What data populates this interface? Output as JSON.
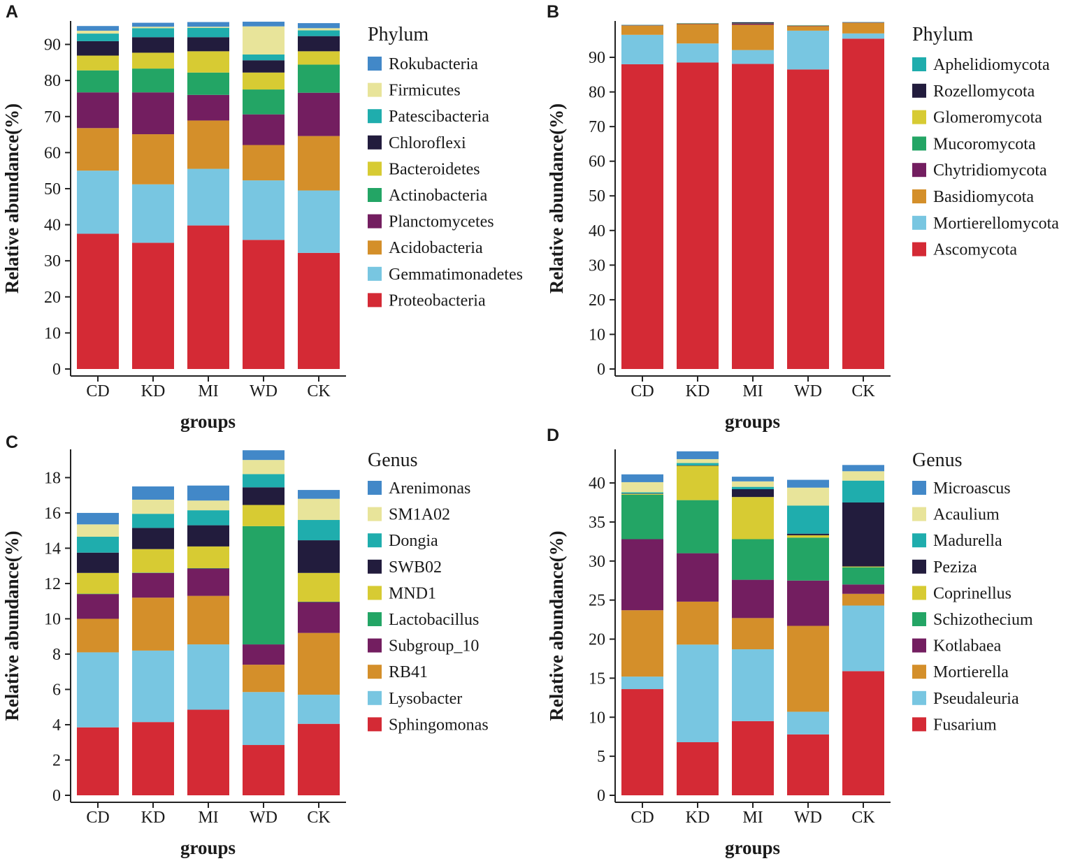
{
  "chart_data": [
    {
      "panel": "A",
      "type": "bar",
      "stacked": true,
      "categories": [
        "CD",
        "KD",
        "MI",
        "WD",
        "CK"
      ],
      "xlabel": "groups",
      "ylabel": "Relative abundance(%)",
      "ylim": [
        0,
        96.5
      ],
      "yticks": [
        0,
        10,
        20,
        30,
        40,
        50,
        60,
        70,
        80,
        90
      ],
      "legend_title": "Phylum",
      "series": [
        {
          "name": "Proteobacteria",
          "color": "#d42a35",
          "values": [
            37.5,
            35.0,
            39.8,
            35.8,
            32.2
          ]
        },
        {
          "name": "Gemmatimonadetes",
          "color": "#78c6e1",
          "values": [
            17.5,
            16.2,
            15.7,
            16.5,
            17.3
          ]
        },
        {
          "name": "Acidobacteria",
          "color": "#d48f2a",
          "values": [
            11.8,
            13.9,
            13.4,
            9.8,
            15.1
          ]
        },
        {
          "name": "Planctomycetes",
          "color": "#731e60",
          "values": [
            9.9,
            11.6,
            7.1,
            8.5,
            12.0
          ]
        },
        {
          "name": "Actinobacteria",
          "color": "#23a565",
          "values": [
            6.1,
            6.6,
            6.2,
            6.9,
            7.8
          ]
        },
        {
          "name": "Bacteroidetes",
          "color": "#d7cb33",
          "values": [
            4.1,
            4.4,
            5.9,
            4.7,
            3.7
          ]
        },
        {
          "name": "Chloroflexi",
          "color": "#221c3d",
          "values": [
            4.0,
            4.3,
            3.9,
            3.4,
            4.2
          ]
        },
        {
          "name": "Patescibacteria",
          "color": "#1fadad",
          "values": [
            2.1,
            2.5,
            2.6,
            1.6,
            1.6
          ]
        },
        {
          "name": "Firmicutes",
          "color": "#e8e49a",
          "values": [
            0.8,
            0.4,
            0.3,
            7.8,
            0.6
          ]
        },
        {
          "name": "Rokubacteria",
          "color": "#4288c8",
          "values": [
            1.3,
            1.1,
            1.3,
            1.3,
            1.4
          ]
        }
      ]
    },
    {
      "panel": "B",
      "type": "bar",
      "stacked": true,
      "categories": [
        "CD",
        "KD",
        "MI",
        "WD",
        "CK"
      ],
      "xlabel": "groups",
      "ylabel": "Relative abundance(%)",
      "ylim": [
        0,
        100.5
      ],
      "yticks": [
        0,
        10,
        20,
        30,
        40,
        50,
        60,
        70,
        80,
        90
      ],
      "legend_title": "Phylum",
      "series": [
        {
          "name": "Ascomycota",
          "color": "#d42a35",
          "values": [
            88.0,
            88.5,
            88.1,
            86.5,
            95.4
          ]
        },
        {
          "name": "Mortierellomycota",
          "color": "#78c6e1",
          "values": [
            8.5,
            5.5,
            4.0,
            11.2,
            1.5
          ]
        },
        {
          "name": "Basidiomycota",
          "color": "#d48f2a",
          "values": [
            2.6,
            5.6,
            7.3,
            1.3,
            3.0
          ]
        },
        {
          "name": "Chytridiomycota",
          "color": "#731e60",
          "values": [
            0.1,
            0.1,
            0.3,
            0.1,
            0.1
          ]
        },
        {
          "name": "Mucoromycota",
          "color": "#23a565",
          "values": [
            0.05,
            0.05,
            0.05,
            0.05,
            0.05
          ]
        },
        {
          "name": "Glomeromycota",
          "color": "#d7cb33",
          "values": [
            0.05,
            0.05,
            0.05,
            0.05,
            0.05
          ]
        },
        {
          "name": "Rozellomycota",
          "color": "#221c3d",
          "values": [
            0.05,
            0.05,
            0.3,
            0.05,
            0.05
          ]
        },
        {
          "name": "Aphelidiomycota",
          "color": "#1fadad",
          "values": [
            0.05,
            0.05,
            0.05,
            0.05,
            0.05
          ]
        }
      ]
    },
    {
      "panel": "C",
      "type": "bar",
      "stacked": true,
      "categories": [
        "CD",
        "KD",
        "MI",
        "WD",
        "CK"
      ],
      "xlabel": "groups",
      "ylabel": "Relative abundance(%)",
      "ylim": [
        0,
        19.6
      ],
      "yticks": [
        0,
        2,
        4,
        6,
        8,
        10,
        12,
        14,
        16,
        18
      ],
      "legend_title": "Genus",
      "series": [
        {
          "name": "Sphingomonas",
          "color": "#d42a35",
          "values": [
            3.85,
            4.15,
            4.85,
            2.85,
            4.05
          ]
        },
        {
          "name": "Lysobacter",
          "color": "#78c6e1",
          "values": [
            4.25,
            4.05,
            3.7,
            3.0,
            1.65
          ]
        },
        {
          "name": "RB41",
          "color": "#d48f2a",
          "values": [
            1.9,
            3.0,
            2.75,
            1.55,
            3.5
          ]
        },
        {
          "name": "Subgroup_10",
          "color": "#731e60",
          "values": [
            1.4,
            1.4,
            1.55,
            1.15,
            1.75
          ]
        },
        {
          "name": "Lactobacillus",
          "color": "#23a565",
          "values": [
            0.02,
            0.02,
            0.02,
            6.7,
            0.02
          ]
        },
        {
          "name": "MND1",
          "color": "#d7cb33",
          "values": [
            1.18,
            1.33,
            1.23,
            1.2,
            1.63
          ]
        },
        {
          "name": "SWB02",
          "color": "#221c3d",
          "values": [
            1.15,
            1.2,
            1.2,
            1.0,
            1.85
          ]
        },
        {
          "name": "Dongia",
          "color": "#1fadad",
          "values": [
            0.9,
            0.8,
            0.85,
            0.75,
            1.15
          ]
        },
        {
          "name": "SM1A02",
          "color": "#e8e49a",
          "values": [
            0.7,
            0.8,
            0.55,
            0.8,
            1.2
          ]
        },
        {
          "name": "Arenimonas",
          "color": "#4288c8",
          "values": [
            0.65,
            0.75,
            0.85,
            0.55,
            0.5
          ]
        }
      ]
    },
    {
      "panel": "D",
      "type": "bar",
      "stacked": true,
      "categories": [
        "CD",
        "KD",
        "MI",
        "WD",
        "CK"
      ],
      "xlabel": "groups",
      "ylabel": "Relative abundance(%)",
      "ylim": [
        0,
        44.3
      ],
      "yticks": [
        0,
        5,
        10,
        15,
        20,
        25,
        30,
        35,
        40
      ],
      "legend_title": "Genus",
      "series": [
        {
          "name": "Fusarium",
          "color": "#d42a35",
          "values": [
            13.6,
            6.8,
            9.5,
            7.8,
            15.9
          ]
        },
        {
          "name": "Pseudaleuria",
          "color": "#78c6e1",
          "values": [
            1.6,
            12.5,
            9.2,
            2.9,
            8.4
          ]
        },
        {
          "name": "Mortierella",
          "color": "#d48f2a",
          "values": [
            8.5,
            5.5,
            4.0,
            11.0,
            1.5
          ]
        },
        {
          "name": "Kotlabaea",
          "color": "#731e60",
          "values": [
            9.1,
            6.2,
            4.9,
            5.8,
            1.2
          ]
        },
        {
          "name": "Schizothecium",
          "color": "#23a565",
          "values": [
            5.7,
            6.8,
            5.2,
            5.5,
            2.2
          ]
        },
        {
          "name": "Coprinellus",
          "color": "#d7cb33",
          "values": [
            0.1,
            4.4,
            5.4,
            0.3,
            0.1
          ]
        },
        {
          "name": "Peziza",
          "color": "#221c3d",
          "values": [
            0.05,
            0.05,
            1.0,
            0.2,
            8.2
          ]
        },
        {
          "name": "Madurella",
          "color": "#1fadad",
          "values": [
            0.15,
            0.3,
            0.3,
            3.6,
            2.8
          ]
        },
        {
          "name": "Acaulium",
          "color": "#e8e49a",
          "values": [
            1.3,
            0.5,
            0.7,
            2.3,
            1.2
          ]
        },
        {
          "name": "Microascus",
          "color": "#4288c8",
          "values": [
            1.0,
            1.0,
            0.6,
            1.0,
            0.8
          ]
        }
      ]
    }
  ]
}
